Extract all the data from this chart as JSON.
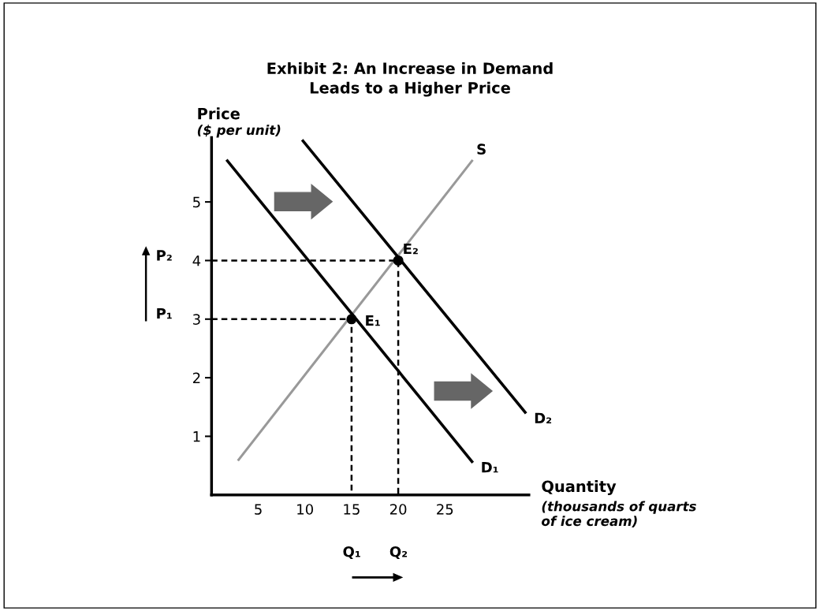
{
  "chart_data": {
    "type": "line",
    "title": "Exhibit 2: An Increase in Demand\nLeads to a Higher Price",
    "xlabel": "Quantity",
    "ylabel": "Price",
    "xlim": [
      0,
      34
    ],
    "ylim": [
      0,
      6.1
    ],
    "xticks": [
      5,
      10,
      15,
      20,
      25
    ],
    "yticks": [
      1,
      2,
      3,
      4,
      5
    ],
    "grid": false,
    "series": [
      {
        "color": "#999999",
        "x": [
          2.9,
          27.9
        ],
        "values": [
          0.6,
          5.7
        ],
        "line_style": "solid",
        "marker": "none"
      },
      {
        "color": "#000000",
        "x": [
          1.7,
          27.9
        ],
        "values": [
          5.7,
          0.57
        ],
        "line_style": "solid",
        "marker": "none"
      },
      {
        "color": "#000000",
        "x": [
          9.8,
          33.6
        ],
        "values": [
          6.04,
          1.41
        ],
        "line_style": "solid",
        "marker": "none"
      },
      {
        "color": "#000000",
        "x": [
          0,
          15,
          15
        ],
        "values": [
          3,
          3,
          0
        ],
        "line_style": "dashed",
        "marker": "none"
      },
      {
        "color": "#000000",
        "x": [
          0,
          20,
          20
        ],
        "values": [
          4,
          4,
          0
        ],
        "line_style": "dashed",
        "marker": "none"
      },
      {
        "type": "scatter",
        "color": "#000000",
        "x": [
          15,
          20
        ],
        "values": [
          3,
          4
        ],
        "marker": "circle"
      }
    ],
    "annotations": [
      {
        "text": "S",
        "x": 27.9,
        "y": 5.7
      },
      {
        "text": "D₁",
        "x": 27.9,
        "y": 0.57
      },
      {
        "text": "D₂",
        "x": 33.6,
        "y": 1.41
      },
      {
        "text": "E₁",
        "x": 15,
        "y": 3
      },
      {
        "text": "E₂",
        "x": 20,
        "y": 4
      },
      "($ per unit)",
      "(thousands of quarts\nof ice cream)",
      "P₁",
      "P₂",
      "Q₁",
      "Q₂"
    ]
  }
}
